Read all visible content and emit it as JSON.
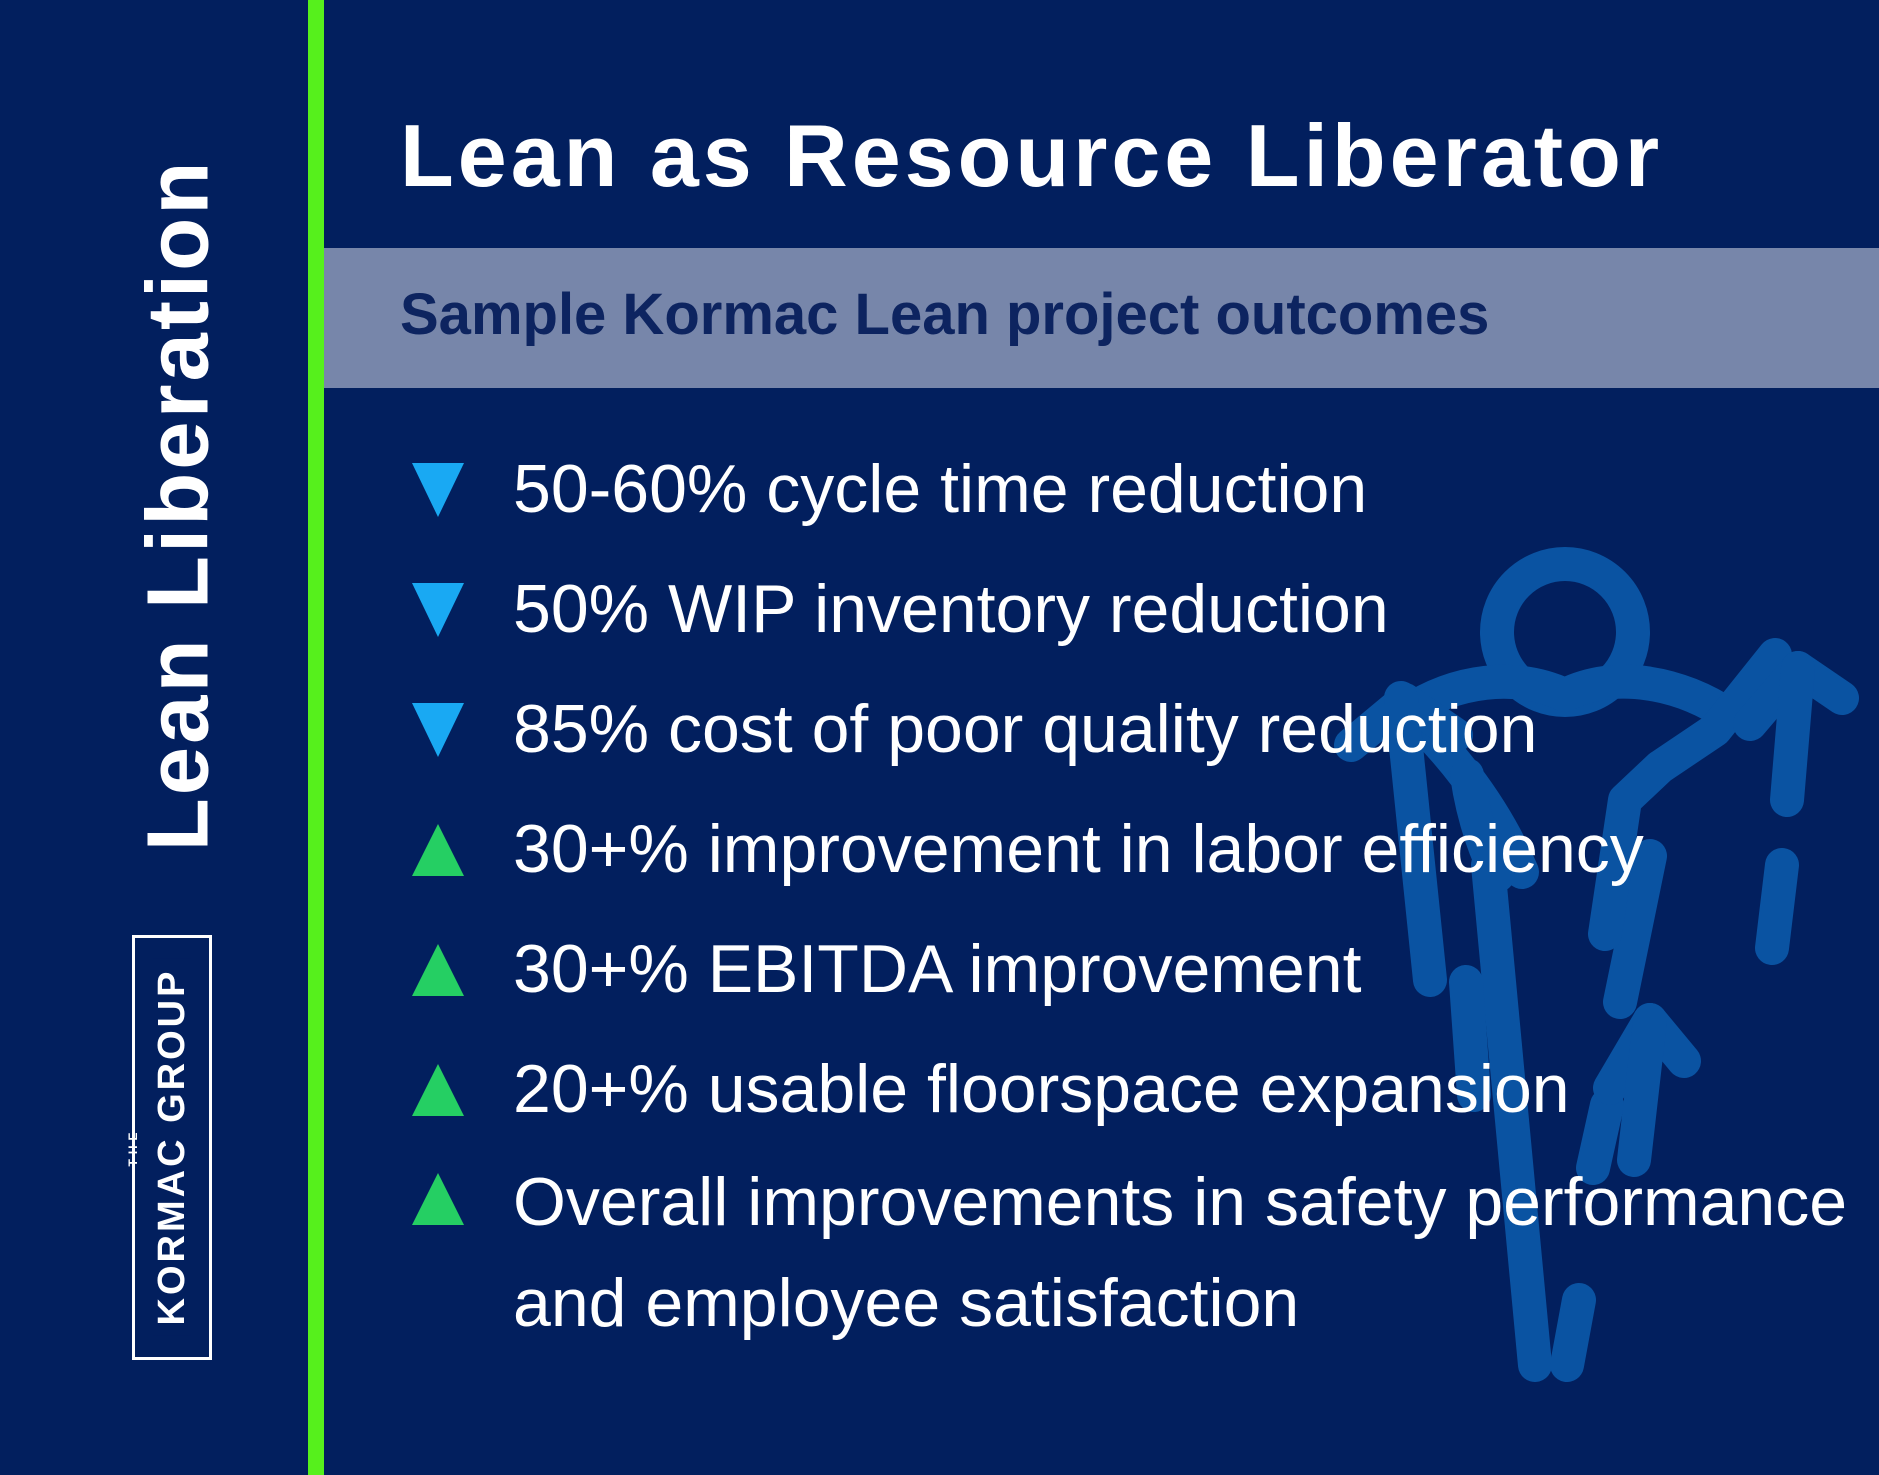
{
  "sidebar": {
    "vertical_title": "Lean Liberation",
    "logo_small_text": "THE",
    "logo_text": "KORMAC GROUP"
  },
  "header": {
    "title": "Lean as Resource Liberator",
    "subtitle": "Sample Kormac Lean project outcomes"
  },
  "outcomes": [
    {
      "text": "50-60% cycle time reduction",
      "direction": "down",
      "icon": "down-triangle-icon"
    },
    {
      "text": "50% WIP inventory reduction",
      "direction": "down",
      "icon": "down-triangle-icon"
    },
    {
      "text": "85% cost of poor quality reduction",
      "direction": "down",
      "icon": "down-triangle-icon"
    },
    {
      "text": "30+% improvement in labor efficiency",
      "direction": "up",
      "icon": "up-triangle-icon"
    },
    {
      "text": "30+% EBITDA improvement",
      "direction": "up",
      "icon": "up-triangle-icon"
    },
    {
      "text": "20+% usable floorspace expansion",
      "direction": "up",
      "icon": "up-triangle-icon"
    },
    {
      "text": "Overall improvements in safety performance and employee satisfaction",
      "direction": "up",
      "icon": "up-triangle-icon"
    }
  ],
  "colors": {
    "background": "#021f5e",
    "accent_green": "#56f01c",
    "subtitle_band": "#7786aa",
    "down_arrow": "#19a9f3",
    "up_arrow": "#25cf63",
    "decor_blue": "#0b58a8"
  },
  "decor": {
    "icon": "person-with-upward-arrows-icon"
  }
}
